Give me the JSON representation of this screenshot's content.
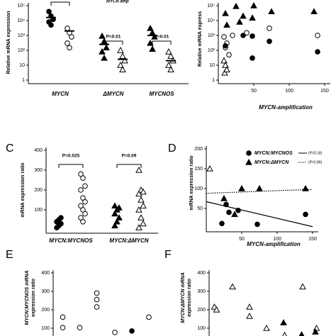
{
  "chart_data": [
    {
      "type": "strip",
      "log_y": true,
      "header": "MYCN amp",
      "ylabel": "Relative mRNA expression",
      "ylim": [
        1,
        100000
      ],
      "yticks": [
        1,
        10,
        {
          "value": 100,
          "label": "10²"
        },
        {
          "value": 1000,
          "label": "10³"
        },
        {
          "value": 10000,
          "label": "10⁴"
        },
        {
          "value": 100000,
          "label": "10⁵"
        }
      ],
      "categories": [
        "MYCN",
        "ΔMYCN",
        "MYCNOS"
      ],
      "markers": [
        "circle",
        "triangle",
        "triangle"
      ],
      "series": [
        {
          "filled": true,
          "values": [
            [
              40000,
              20000,
              12000,
              8000,
              5000
            ],
            [
              900,
              400,
              150,
              80,
              30
            ],
            [
              3000,
              1500,
              800,
              300,
              120
            ]
          ],
          "medians": [
            16000,
            250,
            1000
          ]
        },
        {
          "filled": false,
          "values": [
            [
              3000,
              1500,
              800,
              300,
              150
            ],
            [
              100,
              40,
              20,
              10,
              5
            ],
            [
              80,
              40,
              20,
              10,
              5
            ]
          ],
          "medians": [
            2000,
            25,
            20
          ]
        }
      ],
      "annotations": [
        "P<0.01",
        "P<0.01"
      ],
      "color": "#000000"
    },
    {
      "type": "scatter",
      "log_y": true,
      "ylabel": "Relative mRNA express",
      "xlabel": "MYCN-amplification",
      "xlim": [
        0,
        150
      ],
      "xticks": [
        50,
        100,
        150
      ],
      "ylim": [
        1,
        100000
      ],
      "yticks": [
        1,
        10,
        {
          "value": 100,
          "label": "10²"
        },
        {
          "value": 1000,
          "label": "10³"
        },
        {
          "value": 10000,
          "label": "10⁴"
        },
        {
          "value": 100000,
          "label": "10⁵"
        }
      ],
      "series": [
        {
          "marker": "triangle",
          "filled": true,
          "x": [
            10,
            12,
            25,
            30,
            35,
            48,
            50,
            75,
            135
          ],
          "values": [
            30000,
            5000,
            90000,
            8000,
            20000,
            15000,
            100000,
            40000,
            40000
          ]
        },
        {
          "marker": "circle",
          "filled": false,
          "x": [
            8,
            10,
            12,
            15,
            20,
            40,
            72,
            140
          ],
          "values": [
            800,
            150,
            300,
            50,
            1000,
            1500,
            3000,
            1000
          ]
        },
        {
          "marker": "circle",
          "filled": true,
          "x": [
            10,
            35,
            48,
            48,
            72,
            140
          ],
          "values": [
            200,
            1000,
            900,
            30,
            400,
            80
          ]
        },
        {
          "marker": "triangle",
          "filled": false,
          "x": [
            8,
            9,
            10,
            12
          ],
          "values": [
            20,
            3,
            10,
            5
          ]
        }
      ],
      "color": "#000000"
    },
    {
      "type": "strip",
      "panel": "C",
      "ylabel": "mRNA expression ratio",
      "ylim": [
        0,
        400
      ],
      "yticks": [
        100,
        200,
        300,
        400
      ],
      "categories": [
        "MYCN:MYCNOS",
        "MYCN:ΔMYCN"
      ],
      "markers": [
        "circle",
        "triangle"
      ],
      "series": [
        {
          "filled": true,
          "values": [
            [
              10,
              20,
              30,
              40,
              50,
              60
            ],
            [
              20,
              40,
              60,
              80,
              100,
              110,
              120
            ]
          ]
        },
        {
          "filled": false,
          "values": [
            [
              280,
              260,
              220,
              200,
              160,
              140,
              120,
              100,
              80,
              60,
              40
            ],
            [
              300,
              200,
              190,
              180,
              150,
              120,
              100,
              60,
              30,
              10
            ]
          ]
        }
      ],
      "annotations": [
        "P=0.025",
        "P=0.09"
      ],
      "color": "#000000"
    },
    {
      "type": "scatter",
      "panel": "D",
      "ylabel": "mRNA expression ratio",
      "xlabel": "MYCN-amplification",
      "xlim": [
        0,
        150
      ],
      "xticks": [
        50,
        100,
        150
      ],
      "ylim": [
        0,
        200
      ],
      "yticks": [
        50,
        100,
        150,
        200
      ],
      "series": [
        {
          "name": "MYCN:MYCNOS",
          "legend_note": "(P=0.18)",
          "marker": "circle",
          "filled": true,
          "x": [
            22,
            28,
            32,
            45,
            72,
            140
          ],
          "values": [
            12,
            60,
            40,
            45,
            10,
            35
          ],
          "trend_x": [
            0,
            150
          ],
          "trend": [
            67,
            4
          ],
          "trend_style": "solid"
        },
        {
          "name": "MYCN:ΔMYCN",
          "legend_note": "(P=0.86)",
          "marker": "triangle",
          "filled": true,
          "x": [
            25,
            40,
            50,
            75,
            140
          ],
          "values": [
            75,
            35,
            100,
            100,
            100
          ],
          "trend_x": [
            0,
            150
          ],
          "trend": [
            88,
            98
          ],
          "trend_style": "dotted"
        },
        {
          "marker": "triangle",
          "filled": false,
          "x": [
            5
          ],
          "values": [
            150
          ]
        }
      ],
      "legend": "top",
      "color": "#000000"
    },
    {
      "type": "scatter",
      "panel": "E",
      "ylabel": [
        "MYCN:MYCNOS mRNA",
        "expression ratio"
      ],
      "xlim": [
        0,
        100
      ],
      "ylim": [
        0,
        400
      ],
      "yticks": [
        100,
        200,
        300,
        400
      ],
      "series": [
        {
          "marker": "circle",
          "filled": false,
          "x": [
            9,
            9,
            25,
            41,
            41,
            41,
            58,
            90
          ],
          "values": [
            160,
            103,
            103,
            290,
            255,
            215,
            77,
            160
          ]
        },
        {
          "marker": "circle",
          "filled": true,
          "x": [
            74
          ],
          "values": [
            85
          ]
        }
      ],
      "color": "#000000"
    },
    {
      "type": "scatter",
      "panel": "F",
      "ylabel": [
        "MYCN:ΔMYCN mRNA",
        "expression ratio"
      ],
      "xlim": [
        0,
        100
      ],
      "ylim": [
        0,
        400
      ],
      "yticks": [
        100,
        200,
        300,
        400
      ],
      "series": [
        {
          "marker": "triangle",
          "filled": false,
          "x": [
            5,
            7,
            22,
            38,
            38,
            54,
            71,
            88,
            101
          ],
          "values": [
            215,
            200,
            325,
            215,
            165,
            100,
            62,
            325,
            100
          ]
        },
        {
          "marker": "triangle",
          "filled": true,
          "x": [
            70,
            87,
            100
          ],
          "values": [
            130,
            65,
            80
          ]
        }
      ],
      "color": "#000000"
    }
  ]
}
